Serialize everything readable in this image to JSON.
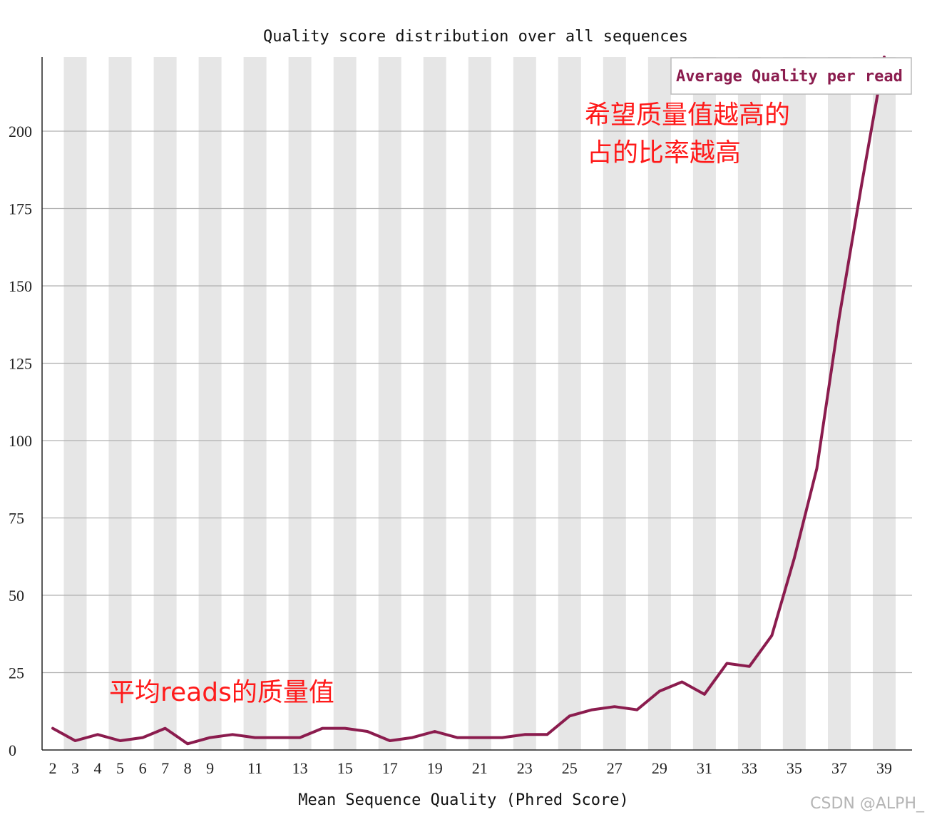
{
  "chart_data": {
    "type": "line",
    "title": "Quality score distribution over all sequences",
    "xlabel": "Mean Sequence Quality (Phred Score)",
    "ylabel": "",
    "ylim": [
      0,
      225
    ],
    "xlim": [
      2,
      39
    ],
    "yticks": [
      0,
      25,
      50,
      75,
      100,
      125,
      150,
      175,
      200
    ],
    "xtick_labels": [
      "2",
      "3",
      "4",
      "5",
      "6",
      "7",
      "8",
      "9",
      "11",
      "13",
      "15",
      "17",
      "19",
      "21",
      "23",
      "25",
      "27",
      "29",
      "31",
      "33",
      "35",
      "37",
      "39"
    ],
    "grid": true,
    "legend_position": "top-right",
    "series": [
      {
        "name": "Average Quality per read",
        "color": "#8b1c4e",
        "x": [
          2,
          3,
          4,
          5,
          6,
          7,
          8,
          9,
          10,
          11,
          12,
          13,
          14,
          15,
          16,
          17,
          18,
          19,
          20,
          21,
          22,
          23,
          24,
          25,
          26,
          27,
          28,
          29,
          30,
          31,
          32,
          33,
          34,
          35,
          36,
          37,
          38,
          39
        ],
        "values": [
          7,
          3,
          5,
          3,
          4,
          7,
          2,
          4,
          5,
          4,
          4,
          4,
          7,
          7,
          6,
          3,
          4,
          6,
          4,
          4,
          4,
          5,
          5,
          11,
          13,
          14,
          13,
          19,
          22,
          18,
          28,
          27,
          37,
          62,
          91,
          140,
          183,
          225
        ]
      }
    ],
    "annotations": [
      {
        "text": "希望质量值越高的",
        "color": "#ff1a1a"
      },
      {
        "text": "占的比率越高",
        "color": "#ff1a1a"
      },
      {
        "text": "平均reads的质量值",
        "color": "#ff1a1a"
      }
    ]
  },
  "watermark": "CSDN @ALPH_"
}
